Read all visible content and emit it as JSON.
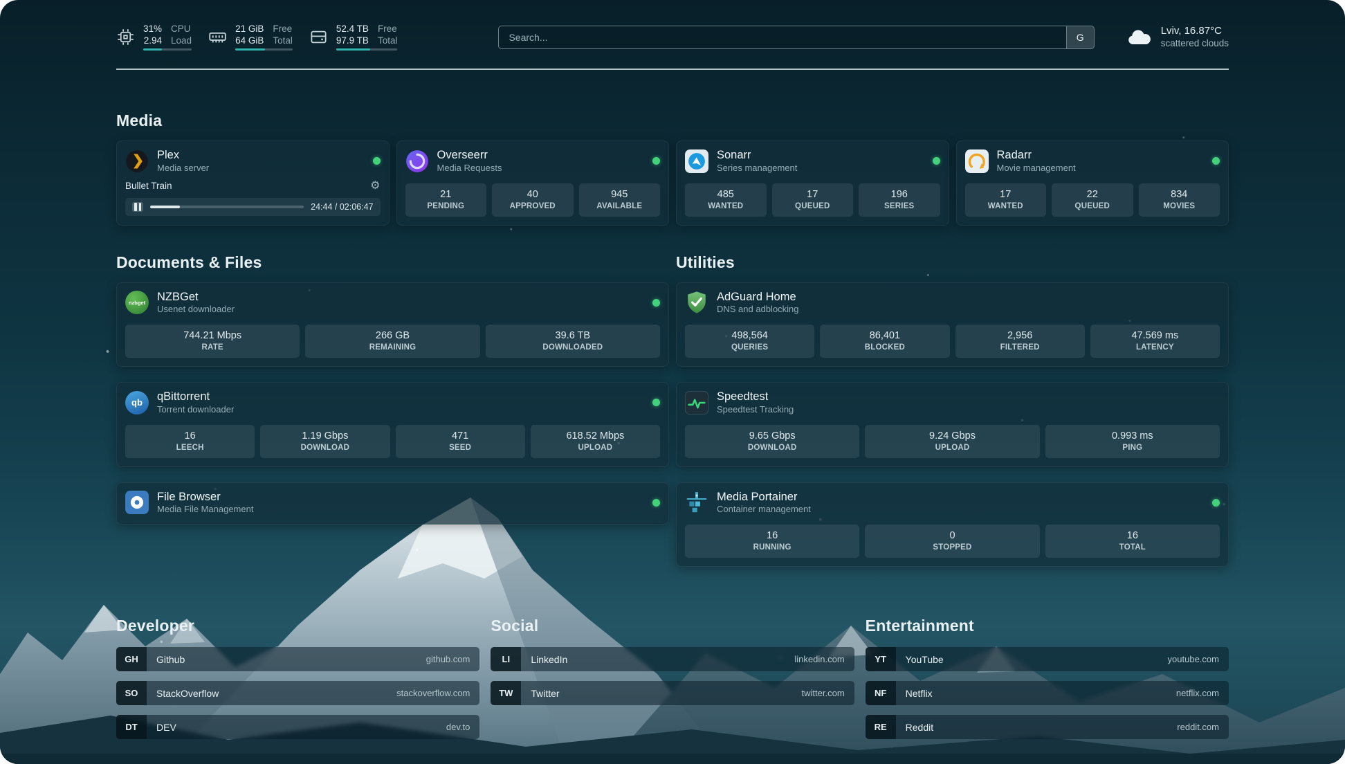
{
  "colors": {
    "accent": "#2fb3aa",
    "status_ok": "#43d17c"
  },
  "topbar": {
    "cpu": {
      "value1": "31%",
      "label1": "CPU",
      "value2": "2.94",
      "label2": "Load",
      "bar_percent": 38
    },
    "ram": {
      "value1": "21 GiB",
      "label1": "Free",
      "value2": "64 GiB",
      "label2": "Total",
      "bar_percent": 52
    },
    "disk": {
      "value1": "52.4 TB",
      "label1": "Free",
      "value2": "97.9 TB",
      "label2": "Total",
      "bar_percent": 55
    },
    "search": {
      "placeholder": "Search...",
      "provider_label": "G"
    },
    "weather": {
      "location": "Lviv, 16.87°C",
      "condition": "scattered clouds"
    }
  },
  "sections": {
    "media": {
      "title": "Media",
      "plex": {
        "name": "Plex",
        "desc": "Media server",
        "now_playing": "Bullet Train",
        "time_display": "24:44 / 02:06:47",
        "progress_percent": 19.5
      },
      "overseerr": {
        "name": "Overseerr",
        "desc": "Media Requests",
        "stats": [
          {
            "value": "21",
            "label": "PENDING"
          },
          {
            "value": "40",
            "label": "APPROVED"
          },
          {
            "value": "945",
            "label": "AVAILABLE"
          }
        ]
      },
      "sonarr": {
        "name": "Sonarr",
        "desc": "Series management",
        "stats": [
          {
            "value": "485",
            "label": "WANTED"
          },
          {
            "value": "17",
            "label": "QUEUED"
          },
          {
            "value": "196",
            "label": "SERIES"
          }
        ]
      },
      "radarr": {
        "name": "Radarr",
        "desc": "Movie management",
        "stats": [
          {
            "value": "17",
            "label": "WANTED"
          },
          {
            "value": "22",
            "label": "QUEUED"
          },
          {
            "value": "834",
            "label": "MOVIES"
          }
        ]
      }
    },
    "documents": {
      "title": "Documents & Files",
      "nzbget": {
        "name": "NZBGet",
        "desc": "Usenet downloader",
        "icon_text": "nzbget",
        "stats": [
          {
            "value": "744.21 Mbps",
            "label": "RATE"
          },
          {
            "value": "266 GB",
            "label": "REMAINING"
          },
          {
            "value": "39.6 TB",
            "label": "DOWNLOADED"
          }
        ]
      },
      "qbittorrent": {
        "name": "qBittorrent",
        "desc": "Torrent downloader",
        "icon_text": "qb",
        "stats": [
          {
            "value": "16",
            "label": "LEECH"
          },
          {
            "value": "1.19 Gbps",
            "label": "DOWNLOAD"
          },
          {
            "value": "471",
            "label": "SEED"
          },
          {
            "value": "618.52 Mbps",
            "label": "UPLOAD"
          }
        ]
      },
      "filebrowser": {
        "name": "File Browser",
        "desc": "Media File Management"
      }
    },
    "utilities": {
      "title": "Utilities",
      "adguard": {
        "name": "AdGuard Home",
        "desc": "DNS and adblocking",
        "stats": [
          {
            "value": "498,564",
            "label": "QUERIES"
          },
          {
            "value": "86,401",
            "label": "BLOCKED"
          },
          {
            "value": "2,956",
            "label": "FILTERED"
          },
          {
            "value": "47.569 ms",
            "label": "LATENCY"
          }
        ]
      },
      "speedtest": {
        "name": "Speedtest",
        "desc": "Speedtest Tracking",
        "stats": [
          {
            "value": "9.65 Gbps",
            "label": "DOWNLOAD"
          },
          {
            "value": "9.24 Gbps",
            "label": "UPLOAD"
          },
          {
            "value": "0.993 ms",
            "label": "PING"
          }
        ]
      },
      "portainer": {
        "name": "Media Portainer",
        "desc": "Container management",
        "stats": [
          {
            "value": "16",
            "label": "RUNNING"
          },
          {
            "value": "0",
            "label": "STOPPED"
          },
          {
            "value": "16",
            "label": "TOTAL"
          }
        ]
      }
    }
  },
  "bookmarks": {
    "developer": {
      "title": "Developer",
      "links": [
        {
          "abbr": "GH",
          "name": "Github",
          "url": "github.com"
        },
        {
          "abbr": "SO",
          "name": "StackOverflow",
          "url": "stackoverflow.com"
        },
        {
          "abbr": "DT",
          "name": "DEV",
          "url": "dev.to"
        }
      ]
    },
    "social": {
      "title": "Social",
      "links": [
        {
          "abbr": "LI",
          "name": "LinkedIn",
          "url": "linkedin.com"
        },
        {
          "abbr": "TW",
          "name": "Twitter",
          "url": "twitter.com"
        }
      ]
    },
    "entertainment": {
      "title": "Entertainment",
      "links": [
        {
          "abbr": "YT",
          "name": "YouTube",
          "url": "youtube.com"
        },
        {
          "abbr": "NF",
          "name": "Netflix",
          "url": "netflix.com"
        },
        {
          "abbr": "RE",
          "name": "Reddit",
          "url": "reddit.com"
        }
      ]
    }
  }
}
